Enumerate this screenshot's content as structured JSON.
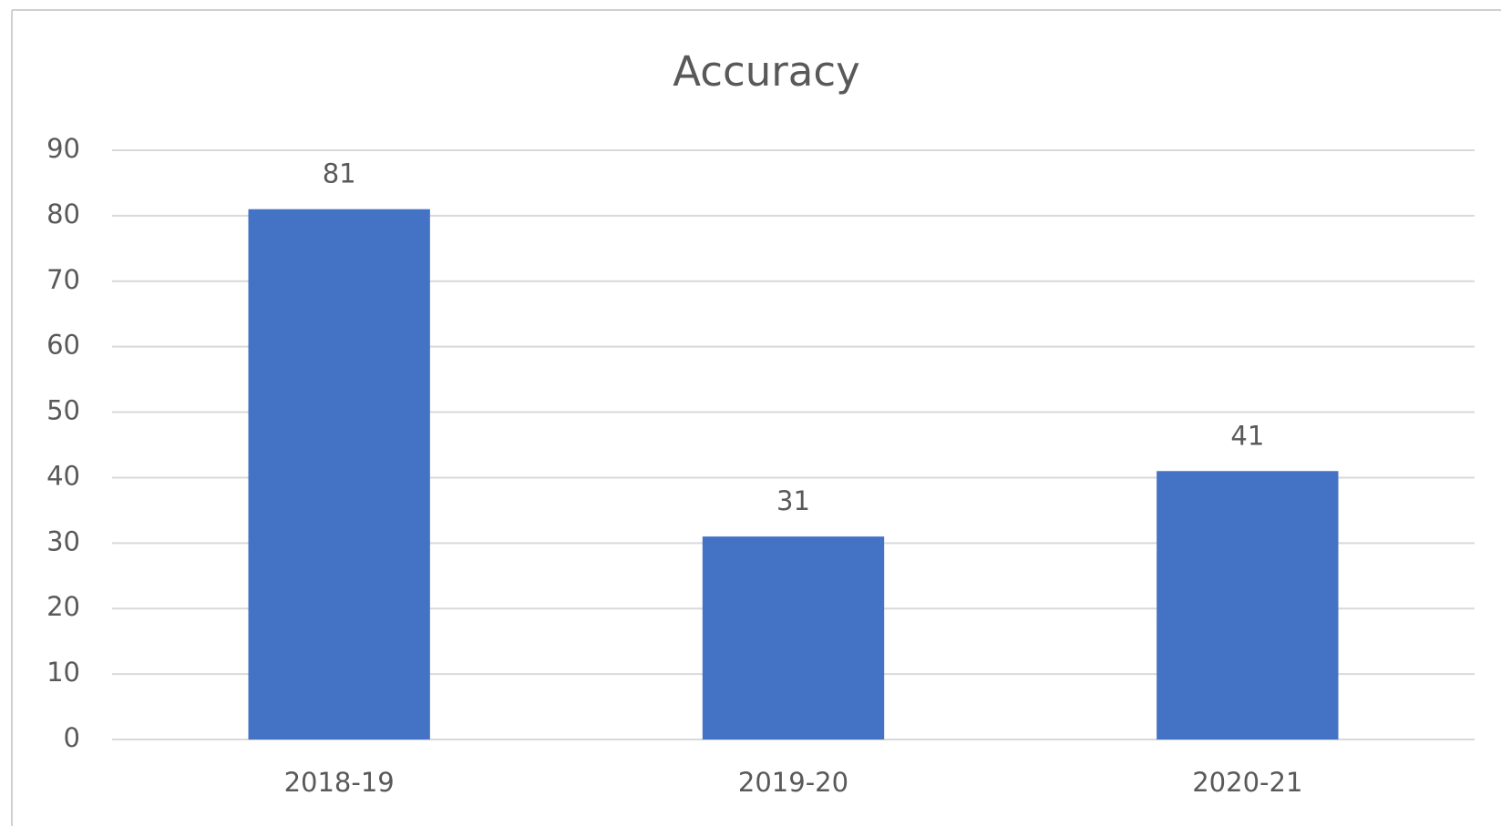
{
  "chart_data": {
    "type": "bar",
    "title": "Accuracy",
    "categories": [
      "2018-19",
      "2019-20",
      "2020-21"
    ],
    "values": [
      81,
      31,
      41
    ],
    "color": "#4472c4",
    "ylim": [
      0,
      90
    ],
    "yticks": [
      0,
      10,
      20,
      30,
      40,
      50,
      60,
      70,
      80,
      90
    ],
    "grid": true
  }
}
